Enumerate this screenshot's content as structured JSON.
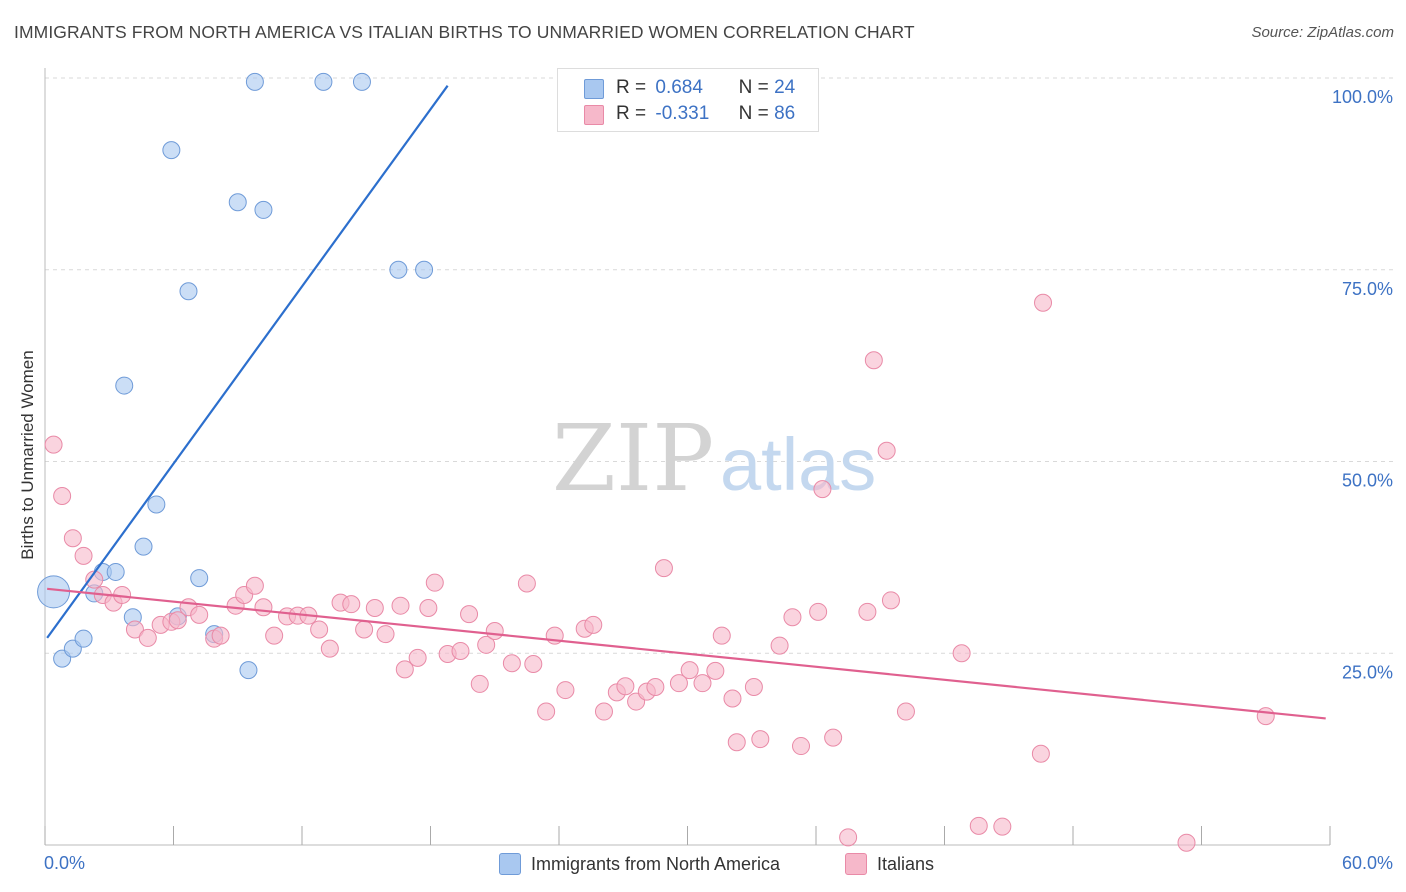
{
  "title": "IMMIGRANTS FROM NORTH AMERICA VS ITALIAN BIRTHS TO UNMARRIED WOMEN CORRELATION CHART",
  "source": "Source: ZipAtlas.com",
  "watermark": {
    "zip": "ZIP",
    "atlas": "atlas"
  },
  "legend_top": {
    "rows": [
      {
        "r_label": "R =",
        "r_value": "0.684",
        "n_label": "N =",
        "n_value": "24",
        "color": "#a9c8f0"
      },
      {
        "r_label": "R =",
        "r_value": "-0.331",
        "n_label": "N =",
        "n_value": "86",
        "color": "#f6b8ca"
      }
    ]
  },
  "legend_bottom": [
    {
      "label": "Immigrants from North America",
      "color": "#a9c8f0"
    },
    {
      "label": "Italians",
      "color": "#f6b8ca"
    }
  ],
  "colors": {
    "blue_fill": "#a9c8f0",
    "blue_stroke": "#6f9bd8",
    "blue_line": "#2c6fcd",
    "pink_fill": "#f6b8ca",
    "pink_stroke": "#e98aa7",
    "pink_line": "#e0608f",
    "axis_label": "#3d72c4",
    "grid": "#d9d9d9"
  },
  "chart_data": {
    "type": "scatter",
    "title": "IMMIGRANTS FROM NORTH AMERICA VS ITALIAN BIRTHS TO UNMARRIED WOMEN CORRELATION CHART",
    "xlabel": "",
    "ylabel": "Births to Unmarried Women",
    "xlim": [
      0,
      60
    ],
    "ylim": [
      0,
      100
    ],
    "x_tick_labels": [
      "0.0%",
      "60.0%"
    ],
    "y_tick_labels": [
      "100.0%",
      "75.0%",
      "50.0%",
      "25.0%"
    ],
    "y_ticks": [
      100,
      75,
      50,
      25
    ],
    "grid": true,
    "legend_position": "top-center",
    "series": [
      {
        "name": "Immigrants from North America",
        "points": [
          [
            0.4,
            33.0
          ],
          [
            0.8,
            24.3
          ],
          [
            1.3,
            25.6
          ],
          [
            1.8,
            26.9
          ],
          [
            2.3,
            32.8
          ],
          [
            2.7,
            35.6
          ],
          [
            3.3,
            35.6
          ],
          [
            3.7,
            59.9
          ],
          [
            4.1,
            29.7
          ],
          [
            4.6,
            38.9
          ],
          [
            5.2,
            44.4
          ],
          [
            5.9,
            90.6
          ],
          [
            6.2,
            29.8
          ],
          [
            6.7,
            72.2
          ],
          [
            7.2,
            34.8
          ],
          [
            7.9,
            27.5
          ],
          [
            9.0,
            83.8
          ],
          [
            9.5,
            22.8
          ],
          [
            9.8,
            99.5
          ],
          [
            10.2,
            82.8
          ],
          [
            13.0,
            99.5
          ],
          [
            14.8,
            99.5
          ],
          [
            16.5,
            75.0
          ],
          [
            17.7,
            75.0
          ]
        ],
        "trend": [
          [
            0.1,
            27.0
          ],
          [
            18.8,
            99.0
          ]
        ]
      },
      {
        "name": "Italians",
        "points": [
          [
            0.4,
            52.2
          ],
          [
            0.8,
            45.5
          ],
          [
            1.3,
            40.0
          ],
          [
            1.8,
            37.7
          ],
          [
            2.3,
            34.6
          ],
          [
            2.7,
            32.6
          ],
          [
            3.2,
            31.6
          ],
          [
            3.6,
            32.6
          ],
          [
            4.2,
            28.1
          ],
          [
            4.8,
            27.0
          ],
          [
            5.4,
            28.7
          ],
          [
            5.9,
            29.1
          ],
          [
            6.2,
            29.3
          ],
          [
            6.7,
            31.0
          ],
          [
            7.2,
            30.0
          ],
          [
            7.9,
            26.9
          ],
          [
            8.2,
            27.3
          ],
          [
            8.9,
            31.2
          ],
          [
            9.3,
            32.6
          ],
          [
            9.8,
            33.8
          ],
          [
            10.2,
            31.0
          ],
          [
            10.7,
            27.3
          ],
          [
            11.3,
            29.8
          ],
          [
            11.8,
            29.9
          ],
          [
            12.3,
            29.9
          ],
          [
            12.8,
            28.1
          ],
          [
            13.3,
            25.6
          ],
          [
            13.8,
            31.6
          ],
          [
            14.3,
            31.4
          ],
          [
            14.9,
            28.1
          ],
          [
            15.4,
            30.9
          ],
          [
            15.9,
            27.5
          ],
          [
            16.6,
            31.2
          ],
          [
            16.8,
            22.9
          ],
          [
            17.4,
            24.4
          ],
          [
            17.9,
            30.9
          ],
          [
            18.2,
            34.2
          ],
          [
            18.8,
            24.9
          ],
          [
            19.4,
            25.3
          ],
          [
            19.8,
            30.1
          ],
          [
            20.3,
            21.0
          ],
          [
            20.6,
            26.1
          ],
          [
            21.0,
            27.9
          ],
          [
            21.8,
            23.7
          ],
          [
            22.5,
            34.1
          ],
          [
            22.8,
            23.6
          ],
          [
            23.4,
            17.4
          ],
          [
            23.8,
            27.3
          ],
          [
            24.3,
            20.2
          ],
          [
            25.2,
            28.2
          ],
          [
            25.6,
            28.7
          ],
          [
            26.1,
            17.4
          ],
          [
            26.7,
            19.9
          ],
          [
            27.1,
            20.7
          ],
          [
            27.6,
            18.7
          ],
          [
            28.1,
            20.0
          ],
          [
            28.5,
            20.6
          ],
          [
            28.9,
            36.1
          ],
          [
            29.6,
            21.1
          ],
          [
            30.1,
            22.8
          ],
          [
            30.7,
            21.1
          ],
          [
            31.3,
            22.7
          ],
          [
            31.6,
            27.3
          ],
          [
            32.1,
            19.1
          ],
          [
            32.3,
            13.4
          ],
          [
            33.1,
            20.6
          ],
          [
            33.4,
            13.8
          ],
          [
            34.3,
            26.0
          ],
          [
            34.9,
            29.7
          ],
          [
            35.3,
            12.9
          ],
          [
            36.1,
            30.4
          ],
          [
            36.3,
            46.4
          ],
          [
            36.8,
            14.0
          ],
          [
            37.5,
            1.0
          ],
          [
            38.4,
            30.4
          ],
          [
            38.7,
            63.2
          ],
          [
            39.3,
            51.4
          ],
          [
            39.5,
            31.9
          ],
          [
            40.2,
            17.4
          ],
          [
            42.8,
            25.0
          ],
          [
            43.6,
            2.5
          ],
          [
            44.7,
            2.4
          ],
          [
            46.6,
            70.7
          ],
          [
            46.5,
            11.9
          ],
          [
            53.3,
            0.3
          ],
          [
            57.0,
            16.8
          ]
        ],
        "trend": [
          [
            0.1,
            33.4
          ],
          [
            59.8,
            16.5
          ]
        ]
      }
    ]
  }
}
